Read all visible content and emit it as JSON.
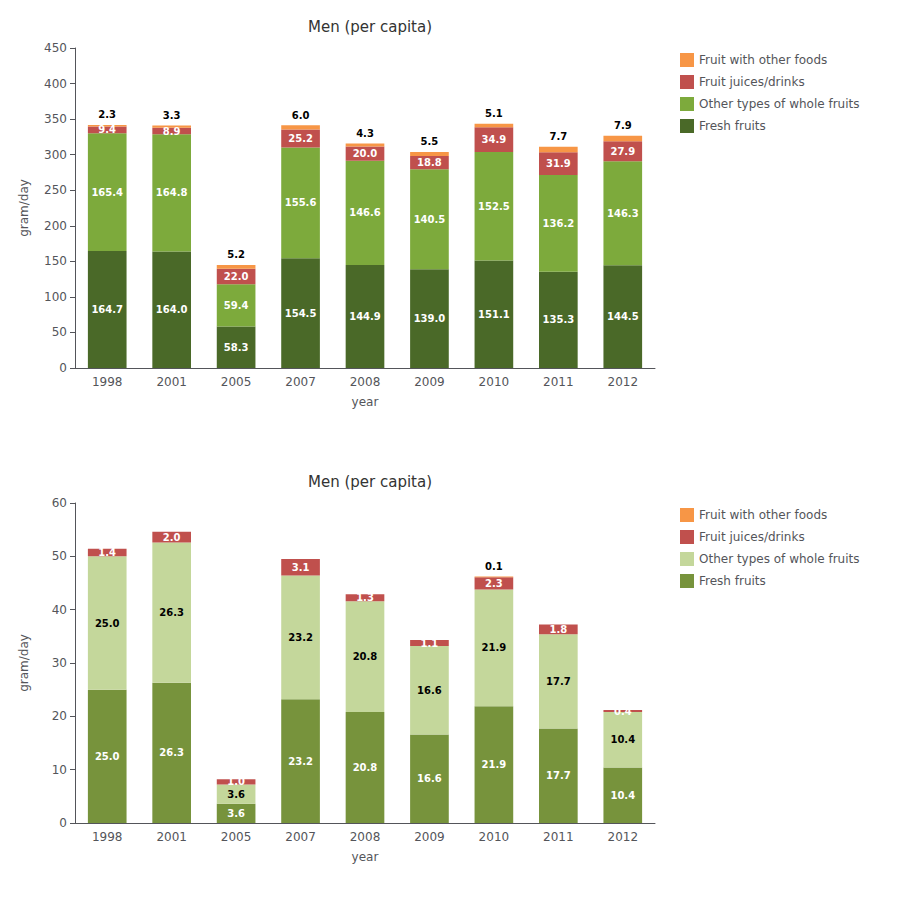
{
  "chart_data": [
    {
      "type": "bar",
      "title": "Men (per capita)",
      "xlabel": "year",
      "ylabel": "gram/day",
      "categories": [
        "1998",
        "2001",
        "2005",
        "2007",
        "2008",
        "2009",
        "2010",
        "2011",
        "2012"
      ],
      "stacked": true,
      "data_labels": true,
      "grid": false,
      "legend": "upper right",
      "ylim": [
        0,
        450
      ],
      "yticks": [
        0,
        50,
        100,
        150,
        200,
        250,
        300,
        350,
        400,
        450
      ],
      "series": [
        {
          "name": "Fresh fruits",
          "color": "#4a6928",
          "values": [
            164.7,
            164.0,
            58.3,
            154.5,
            144.9,
            139.0,
            151.1,
            135.3,
            144.5
          ],
          "value_labels": [
            "164.7",
            "164.0",
            "58.3",
            "154.5",
            "144.9",
            "139.0",
            "151.1",
            "135.3",
            "144.5"
          ]
        },
        {
          "name": "Other types of whole fruits",
          "color": "#7daa3c",
          "values": [
            165.4,
            164.8,
            59.4,
            155.6,
            146.6,
            140.5,
            152.5,
            136.2,
            146.3
          ],
          "value_labels": [
            "165.4",
            "164.8",
            "59.4",
            "155.6",
            "146.6",
            "140.5",
            "152.5",
            "136.2",
            "146.3"
          ]
        },
        {
          "name": "Fruit juices/drinks",
          "color": "#c0504d",
          "values": [
            9.4,
            8.9,
            22.0,
            25.2,
            20.0,
            18.8,
            34.9,
            31.9,
            27.9
          ],
          "value_labels": [
            "9.4",
            "8.9",
            "22.0",
            "25.2",
            "20.0",
            "18.8",
            "34.9",
            "31.9",
            "27.9"
          ]
        },
        {
          "name": "Fruit with other foods",
          "color": "#f79646",
          "values": [
            2.3,
            3.3,
            5.2,
            6.0,
            4.3,
            5.5,
            5.1,
            7.7,
            7.9
          ],
          "value_labels": [
            "2.3",
            "3.3",
            "5.2",
            "6.0",
            "4.3",
            "5.5",
            "5.1",
            "7.7",
            "7.9"
          ]
        }
      ]
    },
    {
      "type": "bar",
      "title": "Men (per capita)",
      "xlabel": "year",
      "ylabel": "gram/day",
      "categories": [
        "1998",
        "2001",
        "2005",
        "2007",
        "2008",
        "2009",
        "2010",
        "2011",
        "2012"
      ],
      "stacked": true,
      "data_labels": true,
      "grid": false,
      "legend": "upper right",
      "ylim": [
        0,
        60
      ],
      "yticks": [
        0,
        10,
        20,
        30,
        40,
        50,
        60
      ],
      "series": [
        {
          "name": "Fresh fruits",
          "color": "#77933c",
          "values": [
            25.0,
            26.3,
            3.6,
            23.2,
            20.8,
            16.6,
            21.9,
            17.7,
            10.4
          ],
          "value_labels": [
            "25.0",
            "26.3",
            "3.6",
            "23.2",
            "20.8",
            "16.6",
            "21.9",
            "17.7",
            "10.4"
          ]
        },
        {
          "name": "Other types of whole fruits",
          "color": "#c4d79b",
          "values": [
            25.0,
            26.3,
            3.6,
            23.2,
            20.8,
            16.6,
            21.9,
            17.7,
            10.4
          ],
          "value_labels": [
            "25.0",
            "26.3",
            "3.6",
            "23.2",
            "20.8",
            "16.6",
            "21.9",
            "17.7",
            "10.4"
          ]
        },
        {
          "name": "Fruit juices/drinks",
          "color": "#c0504d",
          "values": [
            1.4,
            2.0,
            1.0,
            3.1,
            1.3,
            1.1,
            2.3,
            1.8,
            0.4
          ],
          "value_labels": [
            "1.4",
            "2.0",
            "1.0",
            "3.1",
            "1.3",
            "1.1",
            "2.3",
            "1.8",
            "0.4"
          ]
        },
        {
          "name": "Fruit with other foods",
          "color": "#f79646",
          "values": [
            0.0,
            0.0,
            0.0,
            0.0,
            0.0,
            0.0,
            0.1,
            0.0,
            0.0
          ],
          "value_labels": [
            null,
            null,
            null,
            null,
            null,
            null,
            "0.1",
            null,
            null
          ]
        }
      ]
    }
  ]
}
